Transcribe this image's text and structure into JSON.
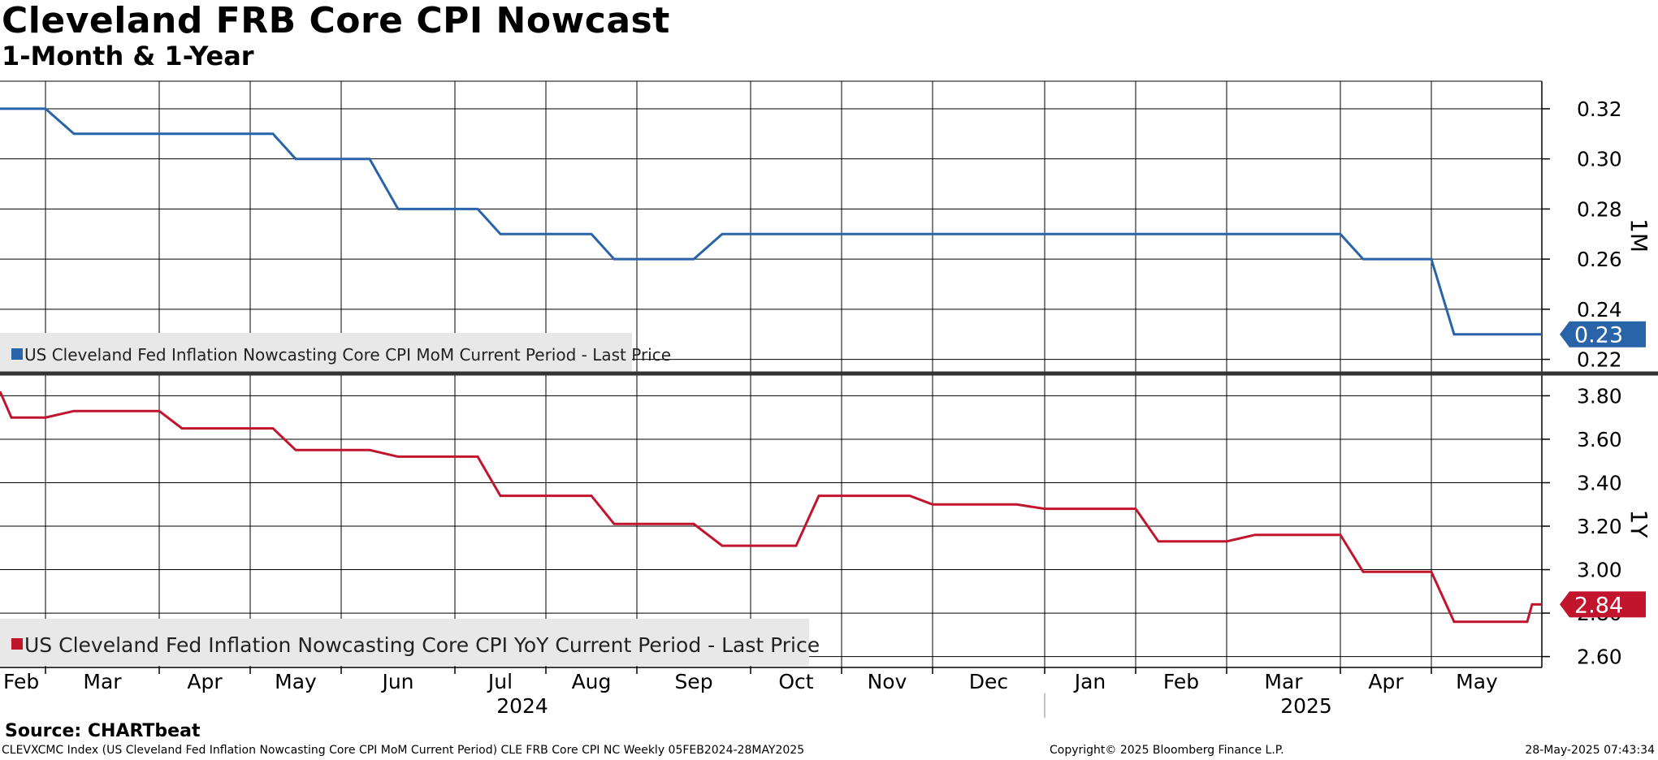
{
  "title": "Cleveland FRB Core CPI Nowcast",
  "subtitle": "1-Month & 1-Year",
  "source": "Source: CHARTbeat",
  "footer": {
    "left": "CLEVXCMC Index (US Cleveland Fed Inflation Nowcasting Core CPI MoM Current Period) CLE FRB Core CPI NC  Weekly 05FEB2024-28MAY2025",
    "middle": "Copyright© 2025 Bloomberg Finance L.P.",
    "right": "28-May-2025 07:43:34"
  },
  "chart_data": {
    "type": "line",
    "x_axis": {
      "months": [
        "Feb",
        "Mar",
        "Apr",
        "May",
        "Jun",
        "Jul",
        "Aug",
        "Sep",
        "Oct",
        "Nov",
        "Dec",
        "Jan",
        "Feb",
        "Mar",
        "Apr",
        "May"
      ],
      "years": [
        "2024",
        "2025"
      ],
      "start": "2024-02-05",
      "end": "2025-05-28",
      "frequency": "Weekly"
    },
    "panels": [
      {
        "axis_label": "1M",
        "legend": "US Cleveland Fed Inflation Nowcasting Core CPI MoM Current Period - Last Price",
        "color": "#2a64a8",
        "last_value": "0.23",
        "ylim": [
          0.215,
          0.331
        ],
        "y_ticks": [
          "0.32",
          "0.30",
          "0.28",
          "0.26",
          "0.24",
          "0.22"
        ],
        "y_tick_values": [
          0.32,
          0.3,
          0.28,
          0.26,
          0.24,
          0.22
        ],
        "points": [
          [
            0.0,
            0.32
          ],
          [
            1.0,
            0.32
          ],
          [
            1.25,
            0.31
          ],
          [
            3.25,
            0.31
          ],
          [
            3.5,
            0.3
          ],
          [
            4.25,
            0.3
          ],
          [
            4.5,
            0.28
          ],
          [
            5.25,
            0.28
          ],
          [
            5.5,
            0.27
          ],
          [
            6.5,
            0.27
          ],
          [
            6.75,
            0.26
          ],
          [
            7.5,
            0.26
          ],
          [
            7.75,
            0.27
          ],
          [
            14.0,
            0.27
          ],
          [
            14.25,
            0.26
          ],
          [
            15.0,
            0.26
          ],
          [
            15.25,
            0.23
          ],
          [
            17.0,
            0.23
          ]
        ]
      },
      {
        "axis_label": "1Y",
        "legend": "US Cleveland Fed Inflation Nowcasting Core CPI YoY Current Period - Last Price",
        "color": "#c0152d",
        "last_value": "2.84",
        "ylim": [
          2.55,
          3.895
        ],
        "y_ticks": [
          "3.80",
          "3.60",
          "3.40",
          "3.20",
          "3.00",
          "2.80",
          "2.60"
        ],
        "y_tick_values": [
          3.8,
          3.6,
          3.4,
          3.2,
          3.0,
          2.8,
          2.6
        ],
        "points": [
          [
            0.0,
            3.82
          ],
          [
            0.25,
            3.7
          ],
          [
            1.0,
            3.7
          ],
          [
            1.25,
            3.73
          ],
          [
            2.0,
            3.73
          ],
          [
            2.25,
            3.65
          ],
          [
            3.25,
            3.65
          ],
          [
            3.5,
            3.55
          ],
          [
            4.25,
            3.55
          ],
          [
            4.5,
            3.52
          ],
          [
            5.25,
            3.52
          ],
          [
            5.5,
            3.34
          ],
          [
            6.5,
            3.34
          ],
          [
            6.75,
            3.21
          ],
          [
            7.5,
            3.21
          ],
          [
            7.75,
            3.11
          ],
          [
            8.5,
            3.11
          ],
          [
            8.75,
            3.34
          ],
          [
            9.75,
            3.34
          ],
          [
            10.0,
            3.3
          ],
          [
            10.75,
            3.3
          ],
          [
            11.0,
            3.28
          ],
          [
            12.0,
            3.28
          ],
          [
            12.25,
            3.13
          ],
          [
            13.0,
            3.13
          ],
          [
            13.25,
            3.16
          ],
          [
            14.0,
            3.16
          ],
          [
            14.25,
            2.99
          ],
          [
            15.0,
            2.99
          ],
          [
            15.25,
            2.76
          ],
          [
            16.25,
            2.76
          ],
          [
            16.5,
            2.84
          ],
          [
            17.0,
            2.84
          ]
        ]
      }
    ]
  }
}
